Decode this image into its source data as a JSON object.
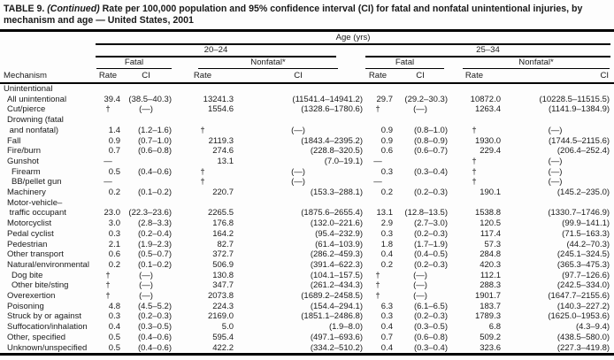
{
  "title": {
    "prefix": "TABLE 9.",
    "continued": "(Continued)",
    "rest": "Rate per 100,000 population and 95% confidence interval (CI) for fatal and nonfatal unintentional injuries, by mechanism and age — United States, 2001"
  },
  "header": {
    "age_label": "Age (yrs)",
    "group_left": "20–24",
    "group_right": "25–34",
    "fatal_label": "Fatal",
    "nonfatal_label": "Nonfatal*",
    "mechanism_label": "Mechanism",
    "rate_label": "Rate",
    "ci_label": "CI"
  },
  "colors": {
    "text": "#1a1a1a",
    "rule": "#000000",
    "background": "#fdfdfd"
  },
  "table": {
    "rows": [
      {
        "label": "Unintentional",
        "type": "section",
        "indent": 0,
        "cells": [
          "",
          "",
          "",
          "",
          "",
          "",
          "",
          ""
        ]
      },
      {
        "label": "All unintentional",
        "type": "data",
        "indent": 1,
        "cells": [
          "39.4",
          "(38.5–40.3)",
          "13241.3",
          "(11541.4–14941.2)",
          "29.7",
          "(29.2–30.3)",
          "10872.0",
          "(10228.5–11515.5)"
        ]
      },
      {
        "label": "Cut/pierce",
        "type": "data",
        "indent": 1,
        "cells": [
          "†",
          "(—)",
          "1554.6",
          "(1328.6–1780.6)",
          "†",
          "(—)",
          "1263.4",
          "(1141.9–1384.9)"
        ]
      },
      {
        "label": "Drowning (fatal\n and nonfatal)",
        "type": "data",
        "indent": 1,
        "cells": [
          "1.4",
          "(1.2–1.6)",
          "†",
          "(—)",
          "0.9",
          "(0.8–1.0)",
          "†",
          "(—)"
        ]
      },
      {
        "label": "Fall",
        "type": "data",
        "indent": 1,
        "cells": [
          "0.9",
          "(0.7–1.0)",
          "2119.3",
          "(1843.4–2395.2)",
          "0.9",
          "(0.8–0.9)",
          "1930.0",
          "(1744.5–2115.6)"
        ]
      },
      {
        "label": "Fire/burn",
        "type": "data",
        "indent": 1,
        "cells": [
          "0.7",
          "(0.6–0.8)",
          "274.6",
          "(228.8–320.5)",
          "0.6",
          "(0.6–0.7)",
          "229.4",
          "(206.4–252.4)"
        ]
      },
      {
        "label": "Gunshot",
        "type": "data",
        "indent": 1,
        "cells": [
          "—",
          "",
          "13.1",
          "(7.0–19.1)",
          "—",
          "",
          "†",
          "(—)"
        ]
      },
      {
        "label": "Firearm",
        "type": "data",
        "indent": 2,
        "cells": [
          "0.5",
          "(0.4–0.6)",
          "†",
          "(—)",
          "0.3",
          "(0.3–0.4)",
          "†",
          "(—)"
        ]
      },
      {
        "label": "BB/pellet gun",
        "type": "data",
        "indent": 2,
        "cells": [
          "—",
          "",
          "†",
          "(—)",
          "—",
          "",
          "†",
          "(—)"
        ]
      },
      {
        "label": "Machinery",
        "type": "data",
        "indent": 1,
        "cells": [
          "0.2",
          "(0.1–0.2)",
          "220.7",
          "(153.3–288.1)",
          "0.2",
          "(0.2–0.3)",
          "190.1",
          "(145.2–235.0)"
        ]
      },
      {
        "label": "Motor-vehicle–\n traffic occupant",
        "type": "data",
        "indent": 1,
        "cells": [
          "23.0",
          "(22.3–23.6)",
          "2265.5",
          "(1875.6–2655.4)",
          "13.1",
          "(12.8–13.5)",
          "1538.8",
          "(1330.7–1746.9)"
        ]
      },
      {
        "label": "Motorcyclist",
        "type": "data",
        "indent": 1,
        "cells": [
          "3.0",
          "(2.8–3.3)",
          "176.8",
          "(132.0–221.6)",
          "2.9",
          "(2.7–3.0)",
          "120.5",
          "(99.9–141.1)"
        ]
      },
      {
        "label": "Pedal cyclist",
        "type": "data",
        "indent": 1,
        "cells": [
          "0.3",
          "(0.2–0.4)",
          "164.2",
          "(95.4–232.9)",
          "0.3",
          "(0.2–0.3)",
          "117.4",
          "(71.5–163.3)"
        ]
      },
      {
        "label": "Pedestrian",
        "type": "data",
        "indent": 1,
        "cells": [
          "2.1",
          "(1.9–2.3)",
          "82.7",
          "(61.4–103.9)",
          "1.8",
          "(1.7–1.9)",
          "57.3",
          "(44.2–70.3)"
        ]
      },
      {
        "label": "Other transport",
        "type": "data",
        "indent": 1,
        "cells": [
          "0.6",
          "(0.5–0.7)",
          "372.7",
          "(286.2–459.3)",
          "0.4",
          "(0.4–0.5)",
          "284.8",
          "(245.1–324.5)"
        ]
      },
      {
        "label": "Natural/environmental",
        "type": "data",
        "indent": 1,
        "cells": [
          "0.2",
          "(0.1–0.2)",
          "506.9",
          "(391.4–622.3)",
          "0.2",
          "(0.2–0.3)",
          "420.3",
          "(365.3–475.3)"
        ]
      },
      {
        "label": "Dog bite",
        "type": "data",
        "indent": 2,
        "cells": [
          "†",
          "(—)",
          "130.8",
          "(104.1–157.5)",
          "†",
          "(—)",
          "112.1",
          "(97.7–126.6)"
        ]
      },
      {
        "label": "Other bite/sting",
        "type": "data",
        "indent": 2,
        "cells": [
          "†",
          "(—)",
          "347.7",
          "(261.2–434.3)",
          "†",
          "(—)",
          "288.3",
          "(242.5–334.0)"
        ]
      },
      {
        "label": "Overexertion",
        "type": "data",
        "indent": 1,
        "cells": [
          "†",
          "(—)",
          "2073.8",
          "(1689.2–2458.5)",
          "†",
          "(—)",
          "1901.7",
          "(1647.7–2155.6)"
        ]
      },
      {
        "label": "Poisoning",
        "type": "data",
        "indent": 1,
        "cells": [
          "4.8",
          "(4.5–5.2)",
          "224.3",
          "(154.4–294.1)",
          "6.3",
          "(6.1–6.5)",
          "183.7",
          "(140.3–227.2)"
        ]
      },
      {
        "label": "Struck by or against",
        "type": "data",
        "indent": 1,
        "cells": [
          "0.3",
          "(0.2–0.3)",
          "2169.0",
          "(1851.1–2486.8)",
          "0.3",
          "(0.2–0.3)",
          "1789.3",
          "(1625.0–1953.6)"
        ]
      },
      {
        "label": "Suffocation/inhalation",
        "type": "data",
        "indent": 1,
        "cells": [
          "0.4",
          "(0.3–0.5)",
          "5.0",
          "(1.9–8.0)",
          "0.4",
          "(0.3–0.5)",
          "6.8",
          "(4.3–9.4)"
        ]
      },
      {
        "label": "Other, specified",
        "type": "data",
        "indent": 1,
        "cells": [
          "0.5",
          "(0.4–0.6)",
          "595.4",
          "(497.1–693.6)",
          "0.7",
          "(0.6–0.8)",
          "509.2",
          "(438.5–580.0)"
        ]
      },
      {
        "label": "Unknown/unspecified",
        "type": "data",
        "indent": 1,
        "cells": [
          "0.5",
          "(0.4–0.6)",
          "422.2",
          "(334.2–510.2)",
          "0.4",
          "(0.3–0.4)",
          "323.6",
          "(227.3–419.8)"
        ]
      }
    ]
  }
}
